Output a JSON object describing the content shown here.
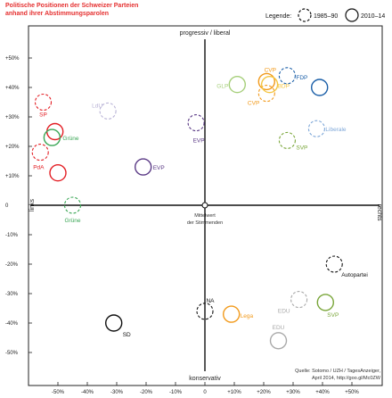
{
  "title_lines": [
    "Politische Positionen der Schweizer Parteien",
    "anhand ihrer Abstimmungsparolen"
  ],
  "legend": {
    "label": "Legende:",
    "old": "1985–90",
    "new": "2010–14"
  },
  "axis_labels": {
    "top": "progressiv / liberal",
    "bottom": "konservativ",
    "left": "links",
    "right": "rechts"
  },
  "center_label": [
    "Mittelwert",
    "der Stimmenden"
  ],
  "source": [
    "Quelle: Sotomo / UZH / TagesAnzeiger,",
    "April 2014, http://goo.gl/Mc0ZW"
  ],
  "chart_data": {
    "type": "scatter",
    "xlim": [
      -60,
      60
    ],
    "ylim": [
      -60,
      60
    ],
    "x_ticks": [
      -50,
      -40,
      -30,
      -20,
      -10,
      0,
      10,
      20,
      30,
      40,
      50
    ],
    "y_ticks": [
      50,
      40,
      30,
      20,
      10,
      0,
      -10,
      -20,
      -30,
      -40,
      -50
    ],
    "x_tick_labels": [
      "-50%",
      "-40%",
      "-30%",
      "-20%",
      "-10%",
      "0",
      "+10%",
      "+20%",
      "+30%",
      "+40%",
      "+50%"
    ],
    "y_tick_labels": [
      "+50%",
      "+40%",
      "+30%",
      "+20%",
      "+10%",
      "0",
      "-10%",
      "-20%",
      "-30%",
      "-40%",
      "-50%"
    ],
    "points": [
      {
        "label": "SP",
        "period": "1985–90",
        "x": -55,
        "y": 35,
        "color": "#e31e24"
      },
      {
        "label": "SP",
        "period": "2010–14",
        "x": -51,
        "y": 25,
        "color": "#e31e24"
      },
      {
        "label": "PdA",
        "period": "1985–90",
        "x": -56,
        "y": 18,
        "color": "#e31e24"
      },
      {
        "label": "PdA",
        "period": "2010–14",
        "x": -50,
        "y": 11,
        "color": "#e31e24"
      },
      {
        "label": "Grüne",
        "period": "2010–14",
        "x": -52,
        "y": 23,
        "color": "#3aa655"
      },
      {
        "label": "Grüne",
        "period": "1985–90",
        "x": -45,
        "y": 0,
        "color": "#3aa655"
      },
      {
        "label": "LdU",
        "period": "1985–90",
        "x": -33,
        "y": 32,
        "color": "#b9b3d6"
      },
      {
        "label": "EVP",
        "period": "2010–14",
        "x": -21,
        "y": 13,
        "color": "#5b3a86"
      },
      {
        "label": "EVP",
        "period": "1985–90",
        "x": -3,
        "y": 28,
        "color": "#5b3a86"
      },
      {
        "label": "GLP",
        "period": "2010–14",
        "x": 11,
        "y": 41,
        "color": "#a6cf7a"
      },
      {
        "label": "CVP",
        "period": "2010–14",
        "x": 21,
        "y": 42,
        "color": "#f29a1b"
      },
      {
        "label": "CVP",
        "period": "1985–90",
        "x": 21,
        "y": 38,
        "color": "#f29a1b"
      },
      {
        "label": "BDP",
        "period": "2010–14",
        "x": 22,
        "y": 41,
        "color": "#f4c542"
      },
      {
        "label": "FDP",
        "period": "1985–90",
        "x": 28,
        "y": 44,
        "color": "#1b5fa8"
      },
      {
        "label": "FDP",
        "period": "2010–14",
        "x": 39,
        "y": 40,
        "color": "#1b5fa8"
      },
      {
        "label": "Liberale",
        "period": "1985–90",
        "x": 38,
        "y": 26,
        "color": "#7ea7d8"
      },
      {
        "label": "SVP",
        "period": "1985–90",
        "x": 28,
        "y": 22,
        "color": "#7aa63a"
      },
      {
        "label": "Autopartei",
        "period": "1985–90",
        "x": 44,
        "y": -20,
        "color": "#111111"
      },
      {
        "label": "EDU",
        "period": "1985–90",
        "x": 32,
        "y": -32,
        "color": "#a9a9a9"
      },
      {
        "label": "EDU",
        "period": "2010–14",
        "x": 25,
        "y": -46,
        "color": "#a9a9a9"
      },
      {
        "label": "SVP",
        "period": "2010–14",
        "x": 41,
        "y": -33,
        "color": "#7aa63a"
      },
      {
        "label": "NA",
        "period": "1985–90",
        "x": 0,
        "y": -36,
        "color": "#111111"
      },
      {
        "label": "Lega",
        "period": "2010–14",
        "x": 9,
        "y": -37,
        "color": "#f29a1b"
      },
      {
        "label": "SD",
        "period": "2010–14",
        "x": -31,
        "y": -40,
        "color": "#111111"
      }
    ]
  }
}
